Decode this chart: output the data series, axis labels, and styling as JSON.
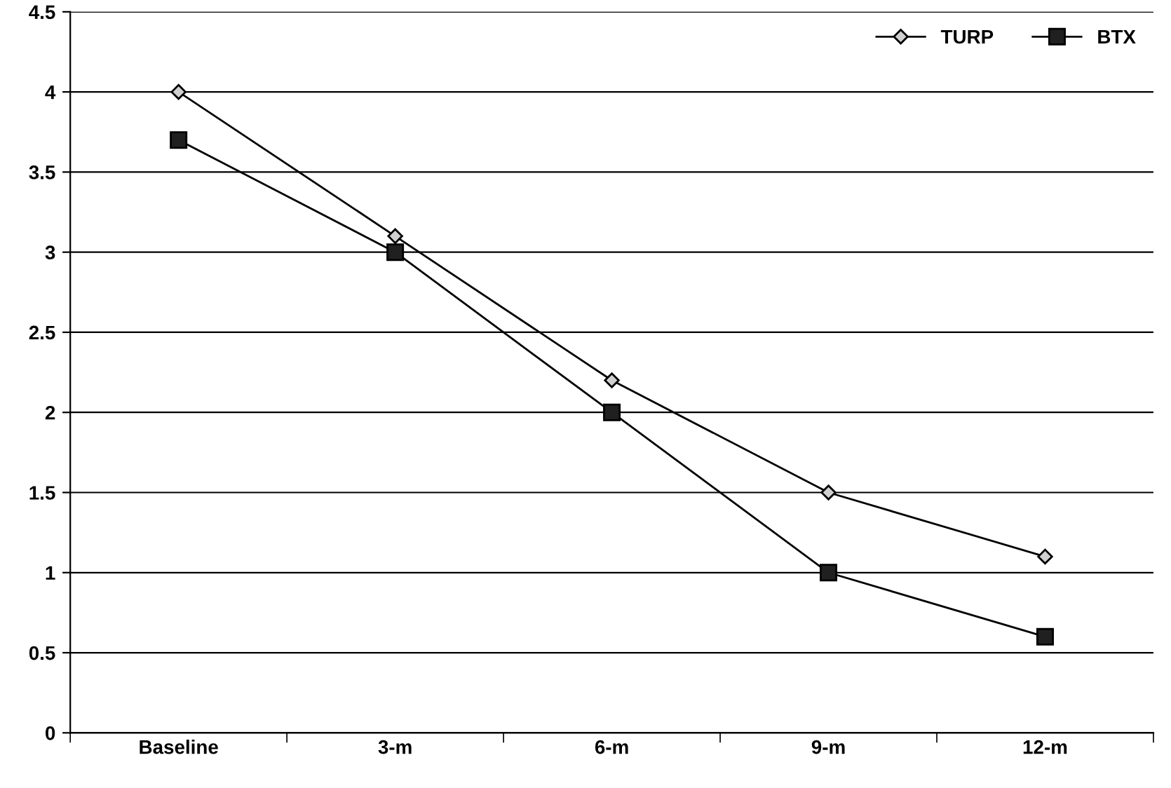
{
  "chart_data": {
    "type": "line",
    "categories": [
      "Baseline",
      "3-m",
      "6-m",
      "9-m",
      "12-m"
    ],
    "series": [
      {
        "name": "TURP",
        "color": "#000000",
        "marker": "diamond",
        "values": [
          4,
          3.1,
          2.2,
          1.5,
          1.1
        ]
      },
      {
        "name": "BTX",
        "color": "#000000",
        "marker": "square",
        "values": [
          3.7,
          3.0,
          2.0,
          1.0,
          0.6
        ]
      }
    ],
    "ylim": [
      0,
      4.5
    ],
    "yticks": [
      0,
      0.5,
      1,
      1.5,
      2,
      2.5,
      3,
      3.5,
      4,
      4.5
    ],
    "grid": "y",
    "legend": "top right",
    "line_style": "solid"
  }
}
